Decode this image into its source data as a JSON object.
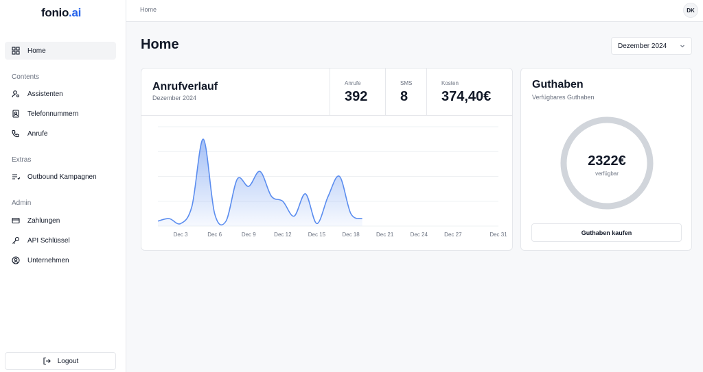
{
  "app": {
    "logo_main": "fonio",
    "logo_accent": ".ai"
  },
  "sidebar": {
    "items": [
      {
        "label": "Home",
        "icon": "grid-icon"
      },
      {
        "label": "Assistenten",
        "icon": "user-cog-icon"
      },
      {
        "label": "Telefonnummern",
        "icon": "contact-book-icon"
      },
      {
        "label": "Anrufe",
        "icon": "phone-icon"
      },
      {
        "label": "Outbound Kampagnen",
        "icon": "list-icon"
      },
      {
        "label": "Zahlungen",
        "icon": "credit-card-icon"
      },
      {
        "label": "API Schlüssel",
        "icon": "key-icon"
      },
      {
        "label": "Unternehmen",
        "icon": "user-circle-icon"
      }
    ],
    "sections": {
      "contents": "Contents",
      "extras": "Extras",
      "admin": "Admin"
    },
    "logout_label": "Logout"
  },
  "topbar": {
    "breadcrumb": "Home",
    "avatar_initials": "DK"
  },
  "main": {
    "title": "Home",
    "month_select": {
      "value": "Dezember 2024"
    }
  },
  "calls_card": {
    "title": "Anrufverlauf",
    "subtitle": "Dezember 2024",
    "stats": [
      {
        "label": "Anrufe",
        "value": "392"
      },
      {
        "label": "SMS",
        "value": "8"
      },
      {
        "label": "Kosten",
        "value": "374,40€"
      }
    ]
  },
  "credit_card": {
    "title": "Guthaben",
    "subtitle": "Verfügbares Guthaben",
    "amount": "2322€",
    "amount_label": "verfügbar",
    "buy_label": "Guthaben kaufen"
  },
  "colors": {
    "accent": "#2563eb",
    "line": "#5b8def",
    "ring": "#d1d5db"
  },
  "chart_data": {
    "type": "area",
    "x": [
      1,
      2,
      3,
      4,
      5,
      6,
      7,
      8,
      9,
      10,
      11,
      12,
      13,
      14,
      15,
      16,
      17,
      18,
      19
    ],
    "series": [
      {
        "values": [
          2,
          3,
          1,
          8,
          35,
          5,
          2,
          19,
          16,
          22,
          12,
          10,
          4,
          13,
          1,
          12,
          20,
          5,
          3
        ]
      }
    ],
    "xlim": [
      1,
      31
    ],
    "ylim": [
      0,
      40
    ],
    "tick_labels": [
      "Dec 3",
      "Dec 6",
      "Dec 9",
      "Dec 12",
      "Dec 15",
      "Dec 18",
      "Dec 21",
      "Dec 24",
      "Dec 27",
      "Dec 31"
    ],
    "tick_values": [
      3,
      6,
      9,
      12,
      15,
      18,
      21,
      24,
      27,
      31
    ],
    "grid": true
  }
}
